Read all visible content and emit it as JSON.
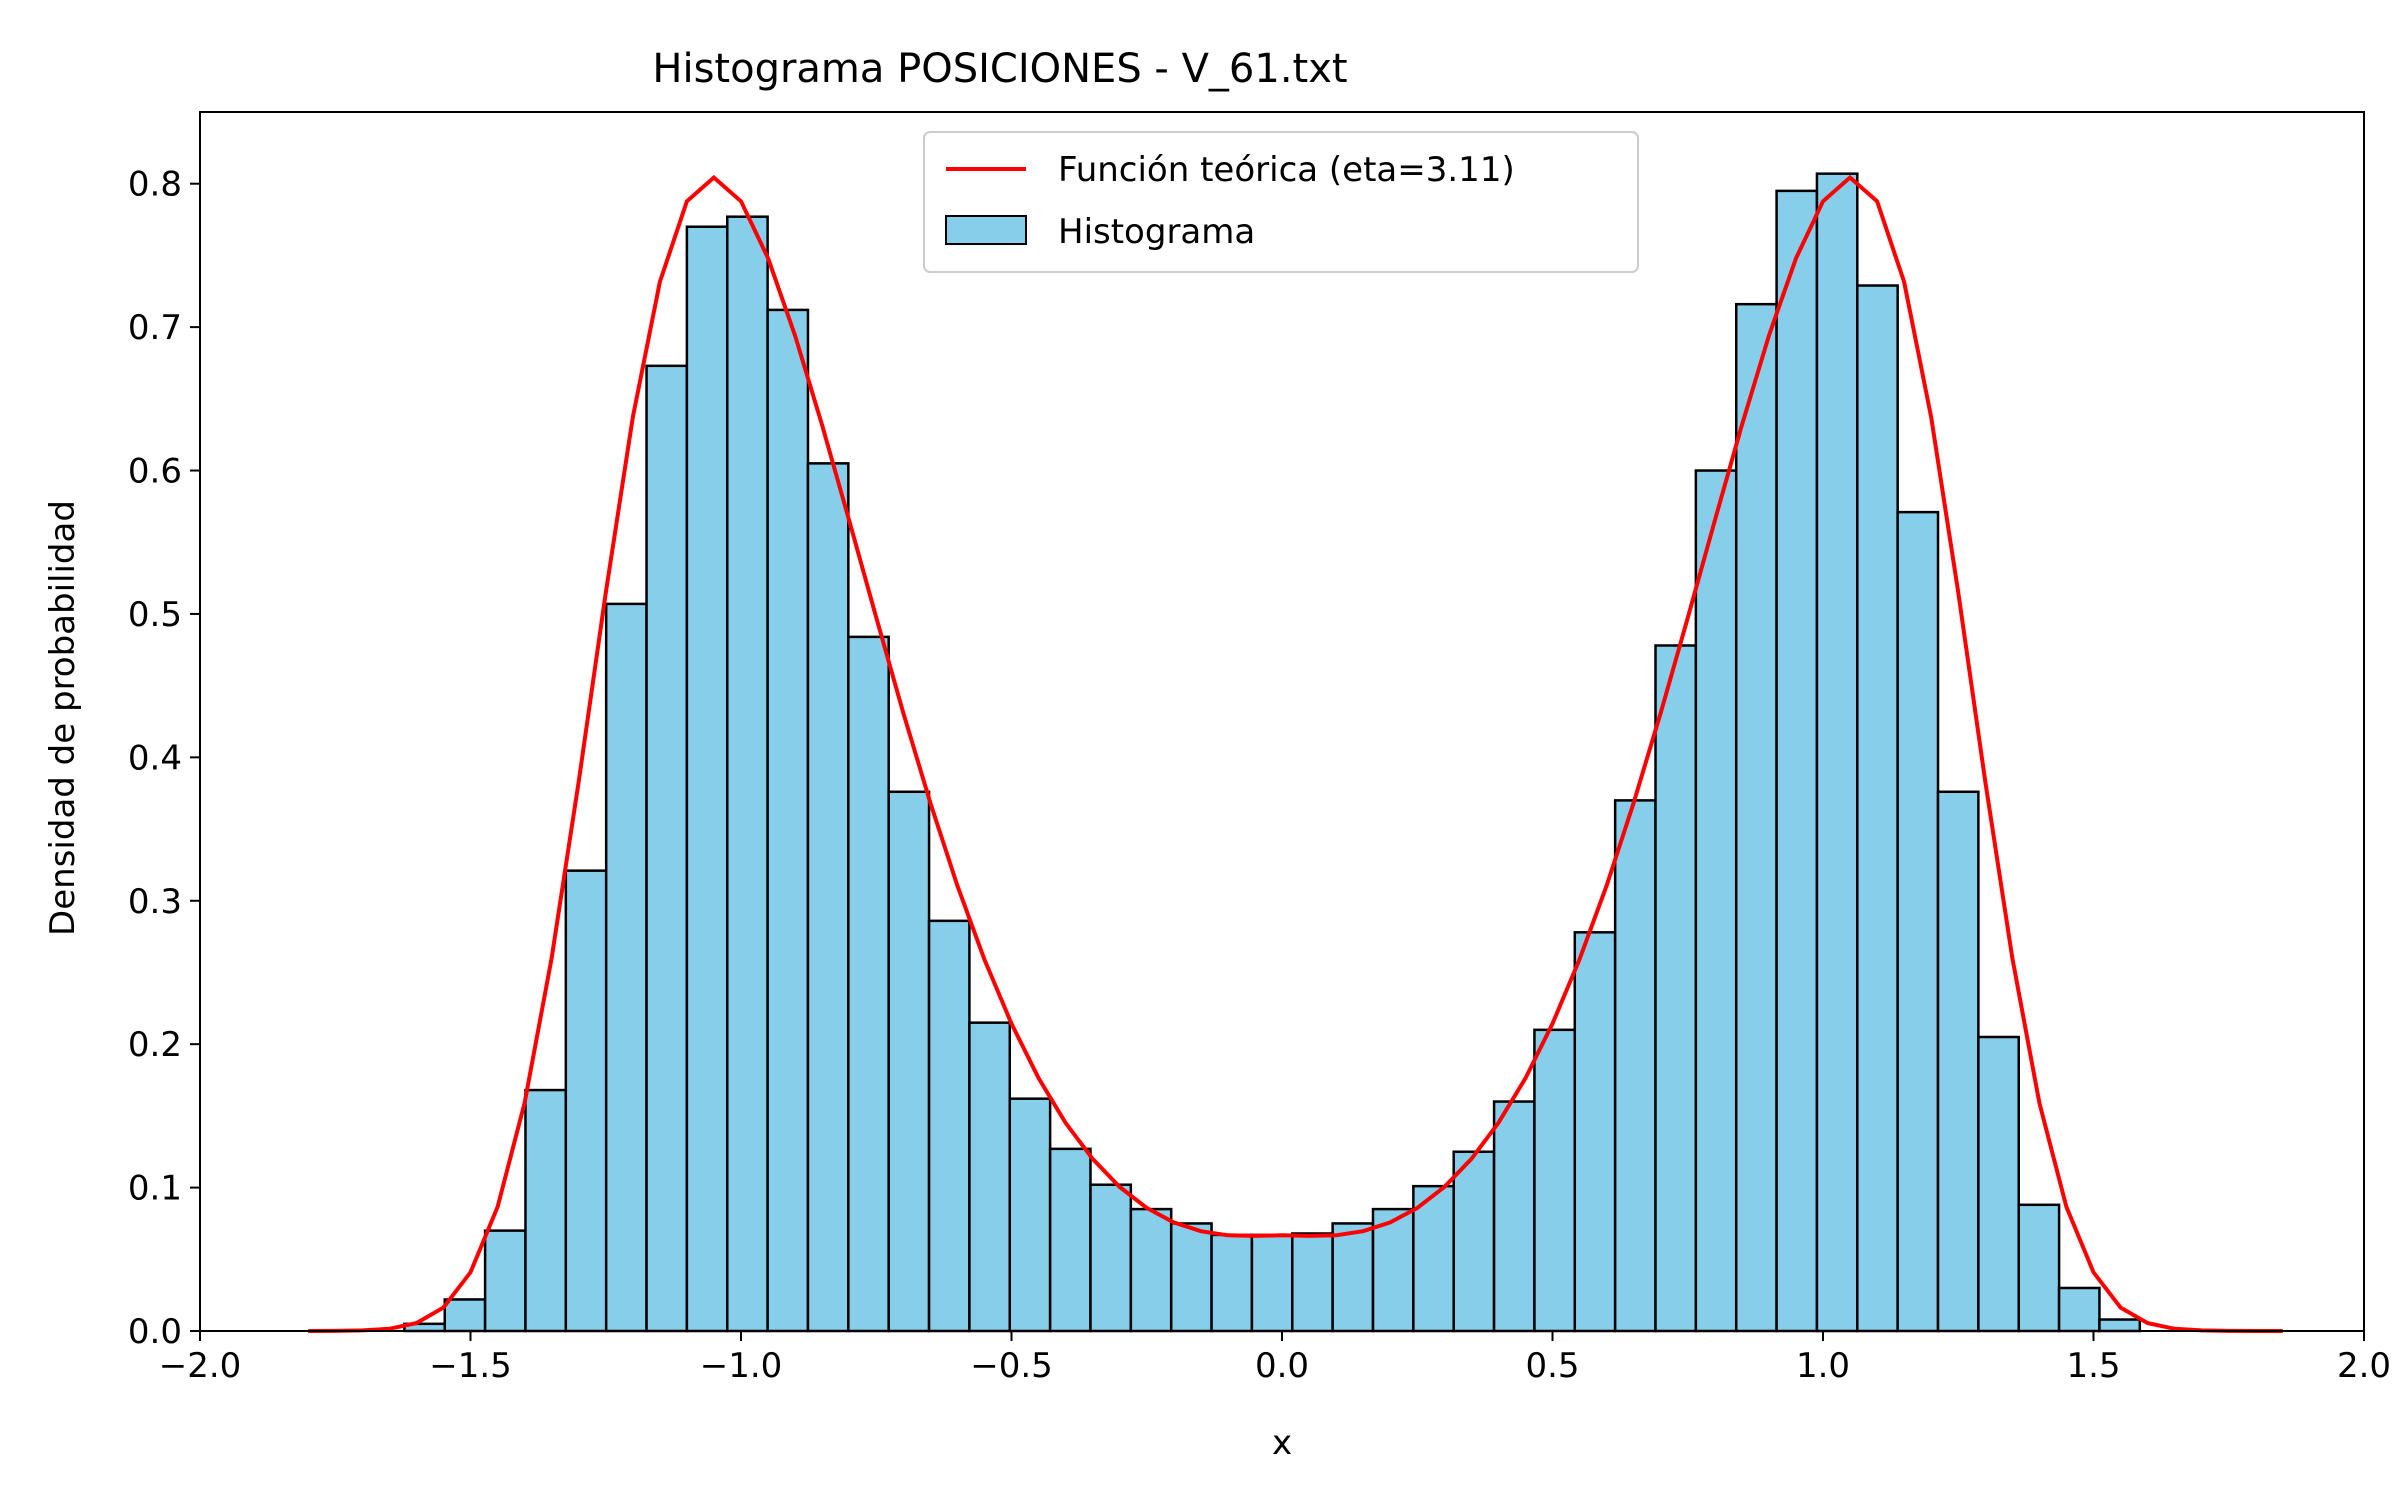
{
  "chart_data": {
    "type": "histogram",
    "title": "Histograma POSICIONES - V_61.txt",
    "xlabel": "x",
    "ylabel": "Densidad de probabilidad",
    "xlim": [
      -2.0,
      2.0
    ],
    "ylim": [
      0.0,
      0.85
    ],
    "xticks": [
      -2.0,
      -1.5,
      -1.0,
      -0.5,
      0.0,
      0.5,
      1.0,
      1.5,
      2.0
    ],
    "xtick_labels": [
      "−2.0",
      "−1.5",
      "−1.0",
      "−0.5",
      "0.0",
      "0.5",
      "1.0",
      "1.5",
      "2.0"
    ],
    "yticks": [
      0.0,
      0.1,
      0.2,
      0.3,
      0.4,
      0.5,
      0.6,
      0.7,
      0.8
    ],
    "ytick_labels": [
      "0.0",
      "0.1",
      "0.2",
      "0.3",
      "0.4",
      "0.5",
      "0.6",
      "0.7",
      "0.8"
    ],
    "grid": false,
    "legend_position": "upper center",
    "series": [
      {
        "name": "Histograma",
        "kind": "bar",
        "color": "#87CEEB",
        "edgecolor": "#000000",
        "bin_edges": [
          -1.6222,
          -1.5476,
          -1.473,
          -1.3984,
          -1.3238,
          -1.2492,
          -1.1746,
          -1.1,
          -1.0254,
          -0.9508,
          -0.8762,
          -0.8016,
          -0.727,
          -0.6524,
          -0.5778,
          -0.5032,
          -0.4286,
          -0.354,
          -0.2794,
          -0.2048,
          -0.1302,
          -0.0556,
          0.019,
          0.0936,
          0.1682,
          0.2428,
          0.3174,
          0.392,
          0.4666,
          0.5412,
          0.6158,
          0.6904,
          0.765,
          0.8396,
          0.9142,
          0.9888,
          1.0634,
          1.138,
          1.2126,
          1.2872,
          1.3618,
          1.4364,
          1.511,
          1.5856
        ],
        "values": [
          0.005,
          0.022,
          0.07,
          0.168,
          0.321,
          0.507,
          0.673,
          0.77,
          0.777,
          0.712,
          0.605,
          0.484,
          0.376,
          0.286,
          0.215,
          0.162,
          0.127,
          0.102,
          0.085,
          0.075,
          0.067,
          0.067,
          0.068,
          0.075,
          0.085,
          0.101,
          0.125,
          0.16,
          0.21,
          0.278,
          0.37,
          0.478,
          0.6,
          0.716,
          0.795,
          0.807,
          0.729,
          0.571,
          0.376,
          0.205,
          0.088,
          0.03,
          0.008
        ]
      },
      {
        "name": "Función teórica (eta=3.11)",
        "kind": "line",
        "color": "#FF0000",
        "x": [
          -1.8,
          -1.75,
          -1.7,
          -1.65,
          -1.6,
          -1.55,
          -1.5,
          -1.45,
          -1.4,
          -1.35,
          -1.3,
          -1.25,
          -1.2,
          -1.15,
          -1.1,
          -1.05,
          -1.0,
          -0.95,
          -0.9,
          -0.85,
          -0.8,
          -0.75,
          -0.7,
          -0.65,
          -0.6,
          -0.55,
          -0.5,
          -0.45,
          -0.4,
          -0.35,
          -0.3,
          -0.25,
          -0.2,
          -0.15,
          -0.1,
          -0.05,
          0.0,
          0.05,
          0.1,
          0.15,
          0.2,
          0.25,
          0.3,
          0.35,
          0.4,
          0.45,
          0.5,
          0.55,
          0.6,
          0.65,
          0.7,
          0.75,
          0.8,
          0.85,
          0.9,
          0.95,
          1.0,
          1.05,
          1.1,
          1.15,
          1.2,
          1.25,
          1.3,
          1.35,
          1.4,
          1.45,
          1.5,
          1.55,
          1.6,
          1.65,
          1.7,
          1.75,
          1.8,
          1.85
        ],
        "y": [
          0.0,
          0.0001,
          0.0004,
          0.0015,
          0.0055,
          0.0163,
          0.0409,
          0.0865,
          0.159,
          0.2598,
          0.383,
          0.5148,
          0.6371,
          0.7316,
          0.7877,
          0.8043,
          0.7877,
          0.748,
          0.694,
          0.6317,
          0.5651,
          0.4974,
          0.431,
          0.3682,
          0.3105,
          0.2591,
          0.2143,
          0.1763,
          0.1451,
          0.12,
          0.1004,
          0.0858,
          0.0757,
          0.0696,
          0.0667,
          0.0663,
          0.0667,
          0.0663,
          0.0667,
          0.0696,
          0.0757,
          0.0858,
          0.1004,
          0.12,
          0.1451,
          0.1763,
          0.2143,
          0.2591,
          0.3105,
          0.3682,
          0.431,
          0.4974,
          0.5651,
          0.6317,
          0.694,
          0.748,
          0.7877,
          0.8043,
          0.7877,
          0.7316,
          0.6371,
          0.5148,
          0.383,
          0.2598,
          0.159,
          0.0865,
          0.0409,
          0.0163,
          0.0055,
          0.0015,
          0.0004,
          0.0001,
          0.0,
          0.0
        ]
      }
    ]
  }
}
